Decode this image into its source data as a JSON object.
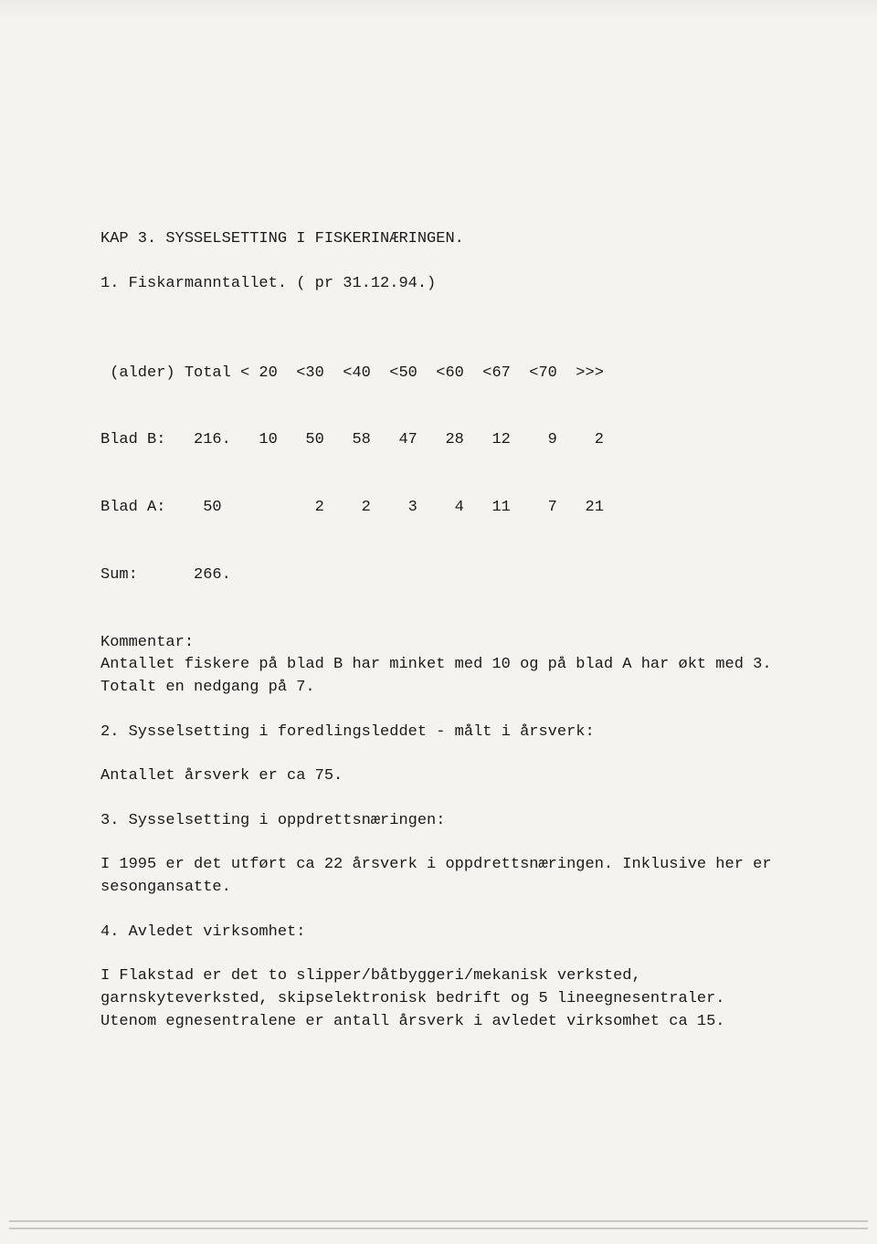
{
  "chapter": {
    "title": "KAP 3.  SYSSELSETTING I FISKERINÆRINGEN."
  },
  "section1": {
    "heading": "1. Fiskarmanntallet. ( pr 31.12.94.)",
    "table": {
      "header_line": " (alder) Total < 20  <30  <40  <50  <60  <67  <70  >>>",
      "rows": [
        "Blad B:   216.   10   50   58   47   28   12    9    2",
        "Blad A:    50          2    2    3    4   11    7   21",
        "Sum:      266."
      ],
      "columns_semantic": [
        "(alder)",
        "Total",
        "< 20",
        "<30",
        "<40",
        "<50",
        "<60",
        "<67",
        "<70",
        ">>>"
      ],
      "data": {
        "Blad B": {
          "Total": "216.",
          "< 20": "10",
          "<30": "50",
          "<40": "58",
          "<50": "47",
          "<60": "28",
          "<67": "12",
          "<70": "9",
          ">>>": "2"
        },
        "Blad A": {
          "Total": "50",
          "< 20": "",
          "<30": "2",
          "<40": "2",
          "<50": "3",
          "<60": "4",
          "<67": "11",
          "<70": "7",
          ">>>": "21"
        },
        "Sum": {
          "Total": "266."
        }
      }
    },
    "comment_label": "Kommentar:",
    "comment_body": "Antallet fiskere på blad B har minket med 10 og på blad A har økt med 3. Totalt en nedgang på 7."
  },
  "section2": {
    "heading": "2. Sysselsetting i foredlingsleddet - målt i årsverk:",
    "body": "Antallet årsverk er ca 75."
  },
  "section3": {
    "heading": "3. Sysselsetting i oppdrettsnæringen:",
    "body": "I 1995 er det utført ca 22 årsverk i oppdrettsnæringen. Inklusive her er sesongansatte."
  },
  "section4": {
    "heading": "4. Avledet virksomhet:",
    "body": "I Flakstad er det to slipper/båtbyggeri/mekanisk verksted, garnskyteverksted, skipselektronisk bedrift og 5 lineegnesentraler. Utenom egnesentralene er antall årsverk i avledet virksomhet ca 15."
  },
  "style": {
    "background_color": "#f5f3f0",
    "text_color": "#1a1a1a",
    "font_family": "Courier New",
    "font_size_pt": 13
  }
}
